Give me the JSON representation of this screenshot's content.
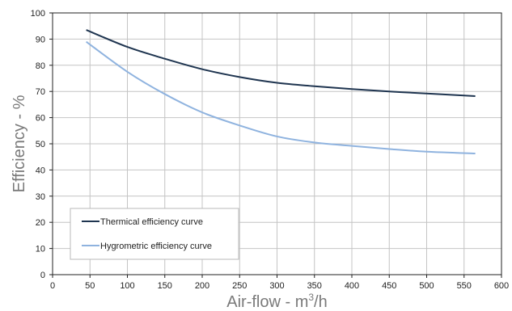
{
  "chart_data": {
    "type": "line",
    "xlabel_parts": {
      "base": "Air-flow - m",
      "sup": "3",
      "tail": "/h"
    },
    "ylabel": "Efficiency - %",
    "xlim": [
      0,
      600
    ],
    "ylim": [
      0,
      100
    ],
    "x_ticks": [
      0,
      50,
      100,
      150,
      200,
      250,
      300,
      350,
      400,
      450,
      500,
      550,
      600
    ],
    "y_ticks": [
      0,
      10,
      20,
      30,
      40,
      50,
      60,
      70,
      80,
      90,
      100
    ],
    "grid": true,
    "legend_position": "bottom-left",
    "series": [
      {
        "name": "Thermical efficiency curve",
        "color": "#1f3550",
        "x": [
          45,
          100,
          150,
          200,
          250,
          300,
          350,
          400,
          450,
          500,
          565
        ],
        "y": [
          93.5,
          87.0,
          82.5,
          78.5,
          75.5,
          73.3,
          72.0,
          70.9,
          70.0,
          69.2,
          68.2
        ]
      },
      {
        "name": "Hygrometric efficiency curve",
        "color": "#8fb3df",
        "x": [
          45,
          100,
          150,
          200,
          250,
          300,
          350,
          400,
          450,
          500,
          565
        ],
        "y": [
          89.0,
          77.5,
          69.0,
          62.0,
          57.0,
          52.8,
          50.5,
          49.2,
          48.0,
          47.0,
          46.3
        ]
      }
    ]
  }
}
